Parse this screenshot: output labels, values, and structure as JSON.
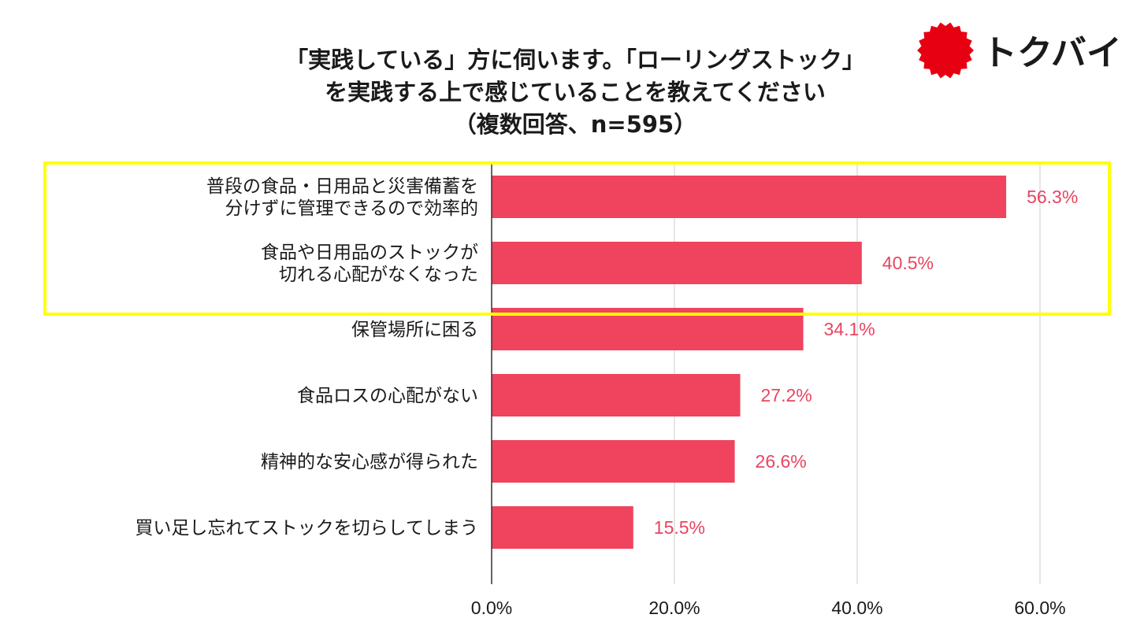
{
  "chart_title": [
    "「実践している」方に伺います。「ローリングストック」",
    "を実践する上で感じていることを教えてください",
    "（複数回答、n=595）"
  ],
  "logo": {
    "text": "トクバイ",
    "color": "#e60012",
    "text_color": "#1a1a1a"
  },
  "chart_data": {
    "type": "bar",
    "orientation": "horizontal",
    "categories": [
      [
        "普段の食品・日用品と災害備蓄を",
        "分けずに管理できるので効率的"
      ],
      [
        "食品や日用品のストックが",
        "切れる心配がなくなった"
      ],
      [
        "保管場所に困る"
      ],
      [
        "食品ロスの心配がない"
      ],
      [
        "精神的な安心感が得られた"
      ],
      [
        "買い足し忘れてストックを切らしてしまう"
      ]
    ],
    "values": [
      56.3,
      40.5,
      34.1,
      27.2,
      26.6,
      15.5
    ],
    "data_labels": [
      "56.3%",
      "40.5%",
      "34.1%",
      "27.2%",
      "26.6%",
      "15.5%"
    ],
    "xlim": [
      0,
      60
    ],
    "xticks": [
      0,
      20,
      40,
      60
    ],
    "xtick_labels": [
      "0.0%",
      "20.0%",
      "40.0%",
      "60.0%"
    ],
    "grid": true,
    "bar_color": "#f0435e",
    "label_color": "#e84461",
    "highlight_box": {
      "categories": [
        0,
        1
      ],
      "color": "#ffff00"
    }
  }
}
